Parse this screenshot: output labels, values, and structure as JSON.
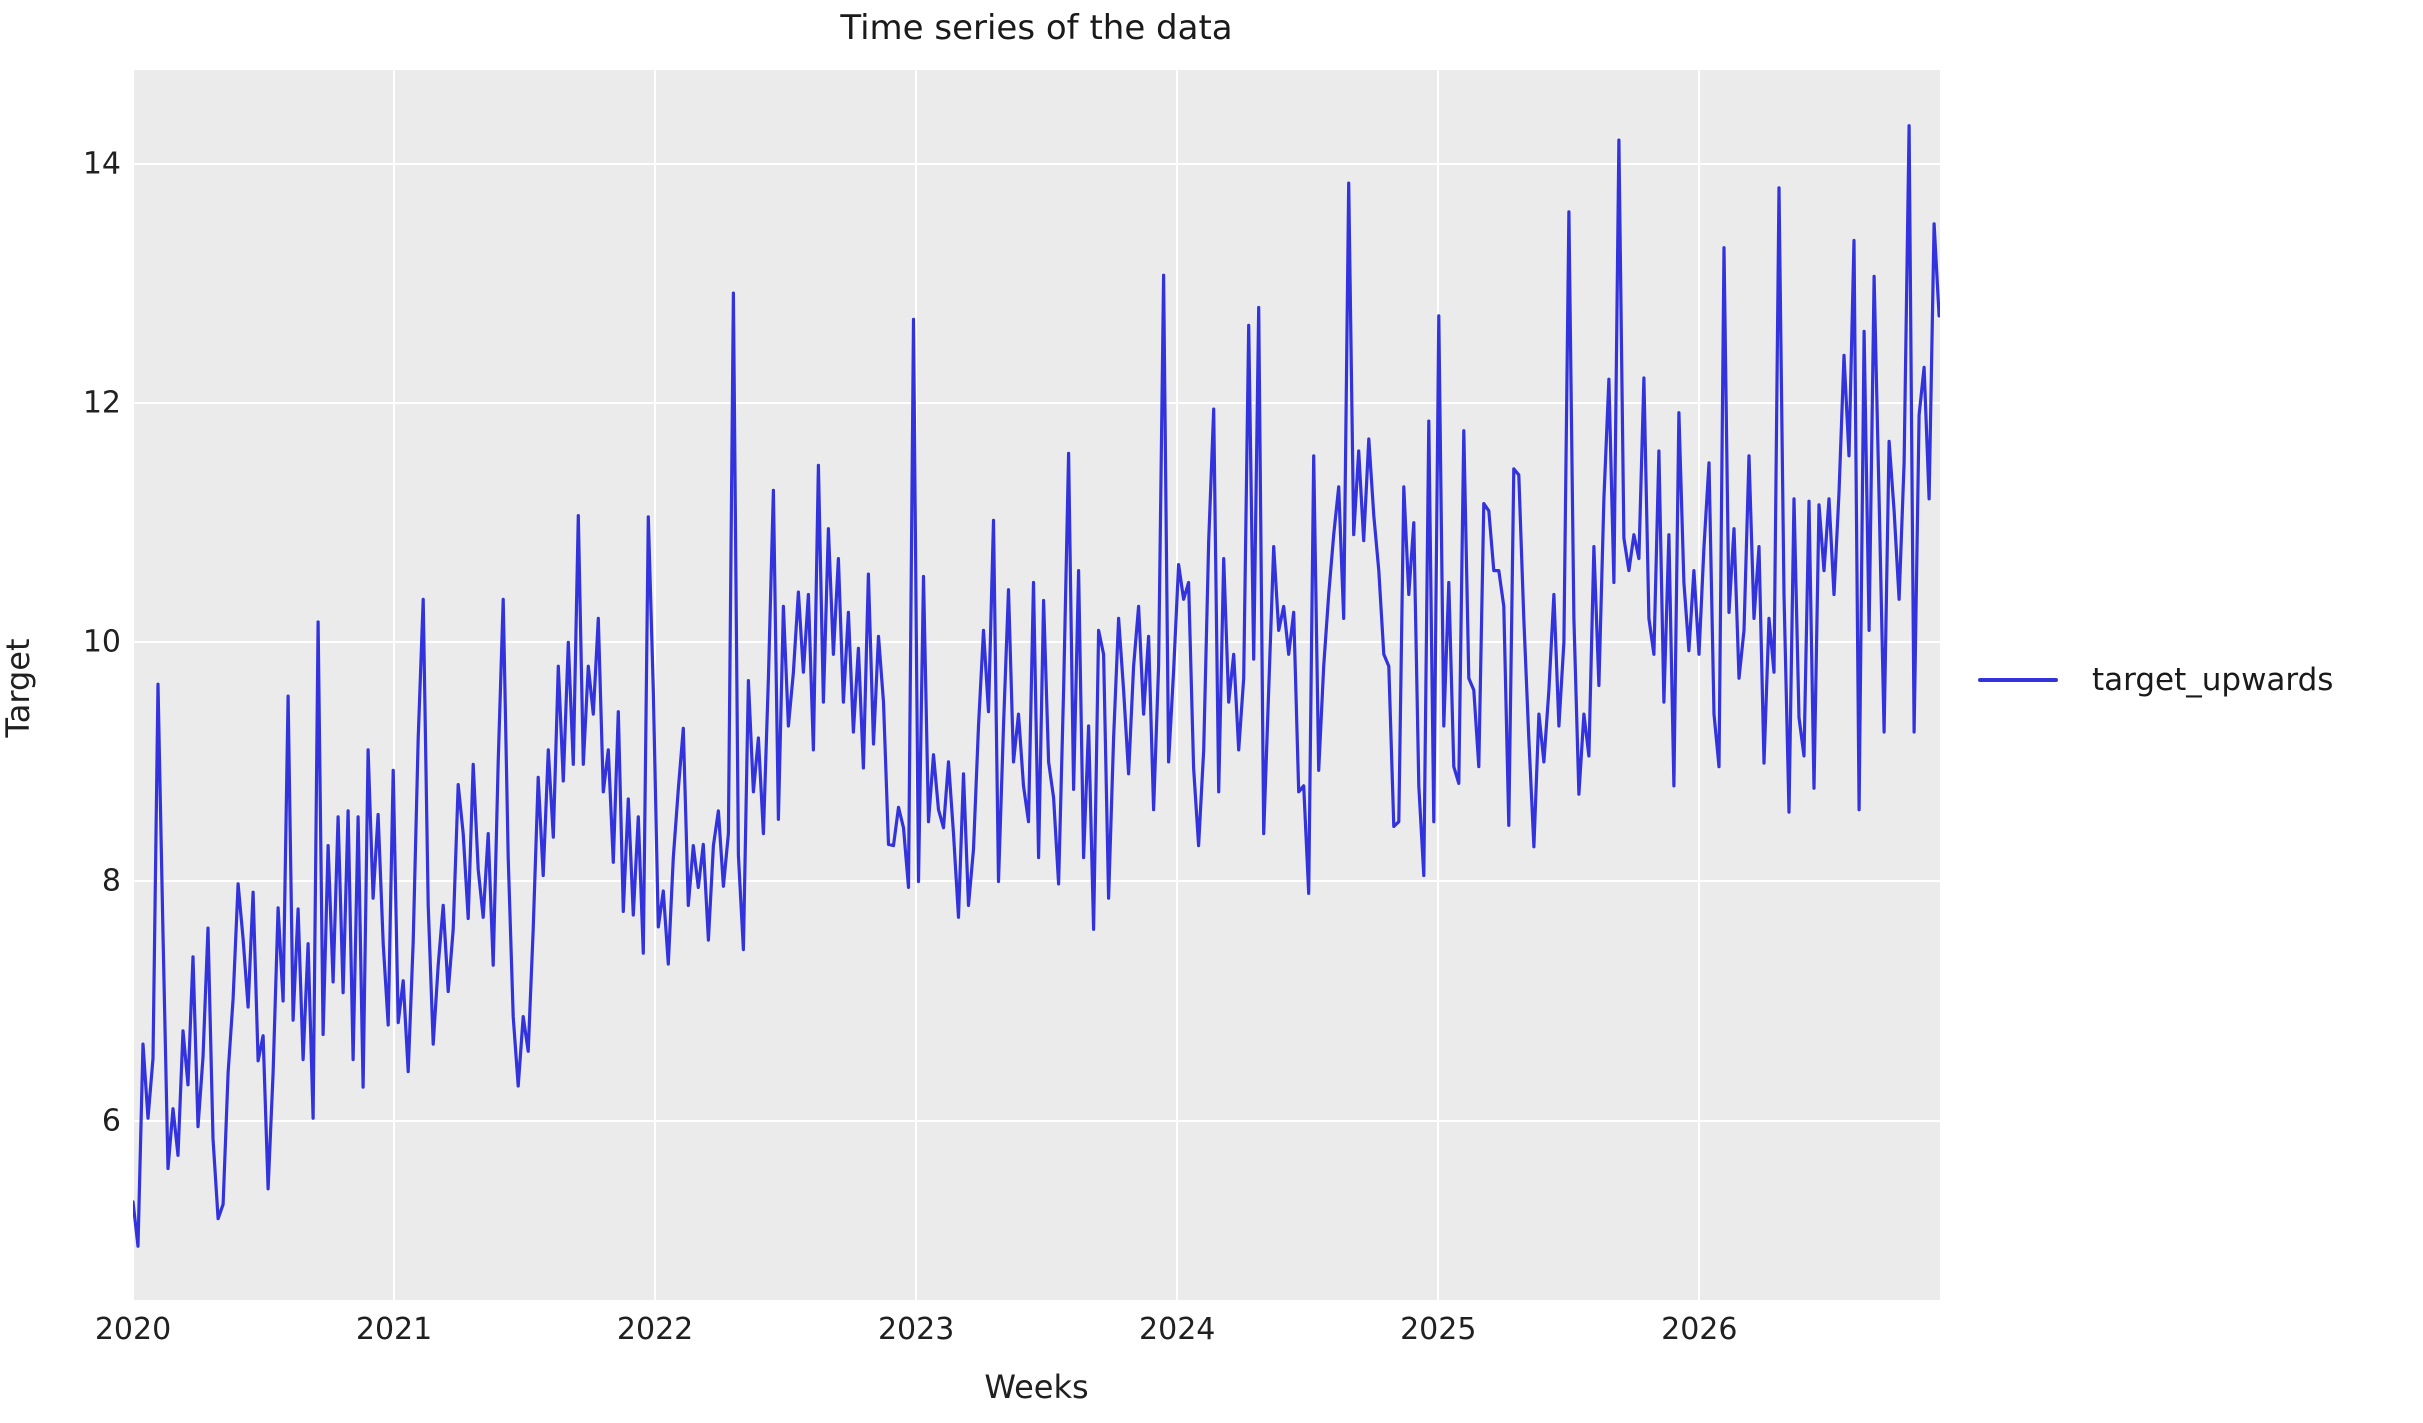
{
  "title": "Time series of the data",
  "legend": {
    "label": "target_upwards"
  },
  "colors": {
    "line": "#3333dd",
    "plot_background": "#ebebeb",
    "grid": "#ffffff",
    "text": "#202020"
  },
  "chart_data": {
    "type": "line",
    "title": "Time series of the data",
    "xlabel": "Weeks",
    "ylabel": "Target",
    "series_name": "target_upwards",
    "legend_position": "center right, outside axes",
    "grid": true,
    "x_start_year": 2020,
    "x_freq_days": 7,
    "x_ticks": [
      "2020",
      "2021",
      "2022",
      "2023",
      "2024",
      "2025",
      "2026"
    ],
    "y_ticks": [
      6,
      8,
      10,
      12,
      14
    ],
    "xlim_years_offset": [
      0,
      6.922
    ],
    "ylim": [
      4.5,
      14.786
    ],
    "values": [
      5.32,
      4.95,
      6.64,
      6.02,
      6.52,
      9.65,
      7.56,
      5.6,
      6.1,
      5.71,
      6.75,
      6.3,
      7.37,
      5.95,
      6.53,
      7.61,
      5.85,
      5.18,
      5.3,
      6.4,
      7.02,
      7.98,
      7.52,
      6.95,
      7.91,
      6.5,
      6.71,
      5.43,
      6.4,
      7.78,
      7.0,
      9.55,
      6.84,
      7.77,
      6.51,
      7.48,
      6.02,
      10.17,
      6.72,
      8.3,
      7.16,
      8.54,
      7.07,
      8.59,
      6.51,
      8.54,
      6.28,
      9.1,
      7.86,
      8.56,
      7.48,
      6.8,
      8.93,
      6.82,
      7.17,
      6.41,
      7.5,
      9.2,
      10.36,
      7.8,
      6.64,
      7.3,
      7.8,
      7.08,
      7.6,
      8.81,
      8.4,
      7.69,
      8.98,
      8.1,
      7.7,
      8.4,
      7.3,
      9.0,
      10.36,
      8.2,
      6.87,
      6.29,
      6.87,
      6.58,
      7.6,
      8.87,
      8.05,
      9.1,
      8.37,
      9.8,
      8.84,
      10.0,
      8.98,
      11.06,
      8.98,
      9.8,
      9.4,
      10.2,
      8.75,
      9.1,
      8.16,
      9.42,
      7.75,
      8.69,
      7.72,
      8.54,
      7.4,
      11.05,
      9.6,
      7.62,
      7.92,
      7.31,
      8.2,
      8.77,
      9.28,
      7.8,
      8.3,
      7.95,
      8.31,
      7.51,
      8.3,
      8.59,
      7.96,
      8.4,
      12.92,
      8.22,
      7.43,
      9.68,
      8.75,
      9.2,
      8.4,
      9.7,
      11.27,
      8.52,
      10.3,
      9.3,
      9.75,
      10.42,
      9.75,
      10.4,
      9.1,
      11.48,
      9.5,
      10.95,
      9.9,
      10.7,
      9.5,
      10.25,
      9.25,
      9.95,
      8.95,
      10.57,
      9.15,
      10.05,
      9.5,
      8.31,
      8.3,
      8.62,
      8.45,
      7.95,
      12.7,
      8.0,
      10.55,
      8.5,
      9.06,
      8.6,
      8.45,
      9.0,
      8.4,
      7.7,
      8.9,
      7.8,
      8.27,
      9.3,
      10.1,
      9.42,
      11.02,
      8.0,
      9.3,
      10.44,
      9.0,
      9.4,
      8.8,
      8.5,
      10.5,
      8.2,
      10.35,
      9.0,
      8.7,
      7.98,
      9.6,
      11.58,
      8.77,
      10.6,
      8.2,
      9.3,
      7.6,
      10.1,
      9.9,
      7.86,
      9.2,
      10.2,
      9.6,
      8.9,
      9.8,
      10.3,
      9.4,
      10.05,
      8.6,
      9.8,
      13.07,
      9.0,
      9.76,
      10.65,
      10.36,
      10.5,
      8.95,
      8.3,
      9.1,
      10.85,
      11.95,
      8.75,
      10.7,
      9.5,
      9.9,
      9.1,
      9.7,
      12.65,
      9.86,
      12.8,
      8.4,
      9.6,
      10.8,
      10.1,
      10.3,
      9.9,
      10.25,
      8.75,
      8.8,
      7.9,
      11.56,
      8.93,
      9.8,
      10.4,
      10.9,
      11.3,
      10.2,
      13.84,
      10.9,
      11.6,
      10.85,
      11.7,
      11.06,
      10.6,
      9.9,
      9.8,
      8.46,
      8.5,
      11.3,
      10.4,
      11.0,
      8.8,
      8.05,
      11.85,
      8.5,
      12.73,
      9.3,
      10.5,
      8.96,
      8.82,
      11.77,
      9.7,
      9.6,
      8.96,
      11.16,
      11.1,
      10.6,
      10.6,
      10.3,
      8.47,
      11.45,
      11.4,
      10.2,
      9.2,
      8.29,
      9.4,
      9.0,
      9.6,
      10.4,
      9.3,
      10.0,
      13.6,
      10.2,
      8.73,
      9.4,
      9.05,
      10.8,
      9.64,
      11.2,
      12.2,
      10.5,
      14.2,
      10.87,
      10.6,
      10.9,
      10.7,
      12.21,
      10.2,
      9.9,
      11.6,
      9.5,
      10.9,
      8.8,
      11.92,
      10.5,
      9.93,
      10.6,
      9.9,
      10.8,
      11.5,
      9.4,
      8.96,
      13.3,
      10.25,
      10.95,
      9.7,
      10.1,
      11.56,
      10.2,
      10.8,
      8.99,
      10.2,
      9.75,
      13.8,
      10.4,
      8.58,
      11.2,
      9.37,
      9.05,
      11.18,
      8.78,
      11.15,
      10.6,
      11.2,
      10.4,
      11.25,
      12.4,
      11.56,
      13.36,
      8.6,
      12.6,
      10.1,
      13.06,
      11.2,
      9.25,
      11.68,
      11.1,
      10.36,
      11.5,
      14.32,
      9.25,
      11.9,
      12.3,
      11.2,
      13.5,
      12.73
    ]
  }
}
